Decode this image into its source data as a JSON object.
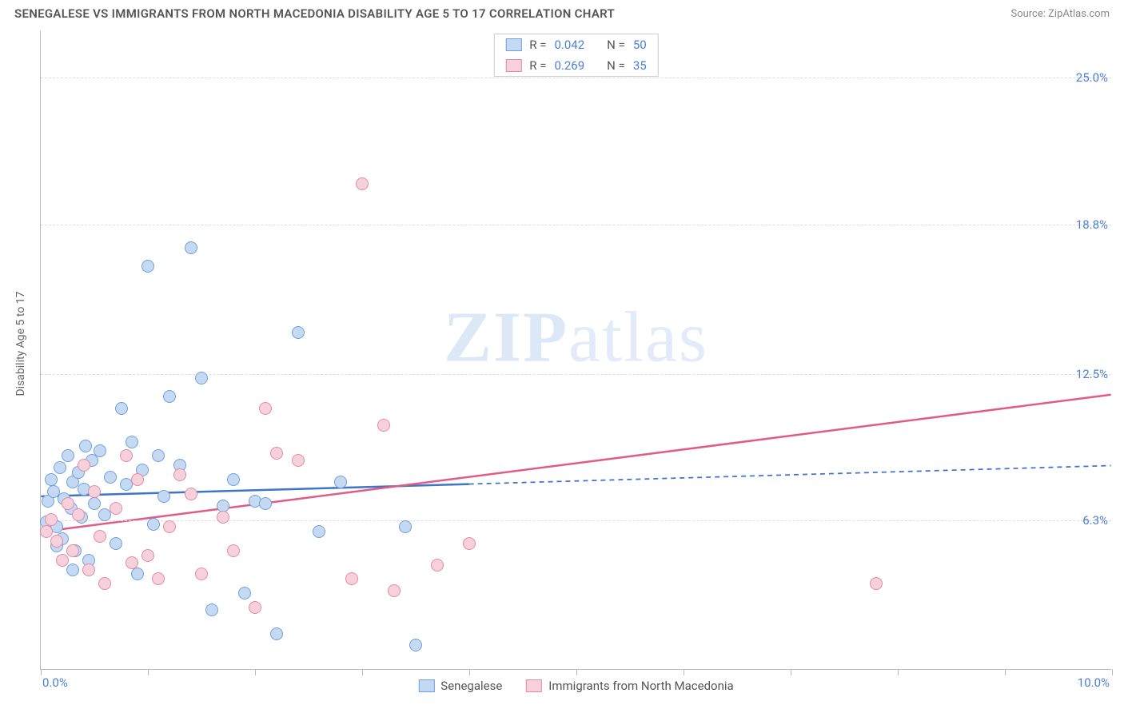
{
  "title": "SENEGALESE VS IMMIGRANTS FROM NORTH MACEDONIA DISABILITY AGE 5 TO 17 CORRELATION CHART",
  "source": "Source: ZipAtlas.com",
  "yaxis_title": "Disability Age 5 to 17",
  "watermark_a": "ZIP",
  "watermark_b": "atlas",
  "chart": {
    "type": "scatter",
    "xlim": [
      0,
      10
    ],
    "ylim": [
      0,
      27
    ],
    "x_min_label": "0.0%",
    "x_max_label": "10.0%",
    "xtick_positions": [
      0,
      1,
      2,
      3,
      4,
      5,
      6,
      7,
      8,
      9,
      10
    ],
    "yticks": [
      {
        "v": 6.3,
        "label": "6.3%"
      },
      {
        "v": 12.5,
        "label": "12.5%"
      },
      {
        "v": 18.8,
        "label": "18.8%"
      },
      {
        "v": 25.0,
        "label": "25.0%"
      }
    ],
    "background_color": "#ffffff",
    "grid_color": "#dddddd",
    "point_radius": 8,
    "point_stroke_width": 1.2,
    "line_width": 2.5,
    "dash_pattern": "6,5"
  },
  "series": [
    {
      "name": "Senegalese",
      "fill": "#c5d9f2",
      "stroke": "#6fa0de",
      "line_color": "#3f74c9",
      "R_label": "R =",
      "R": "0.042",
      "N_label": "N =",
      "N": "50",
      "regression": {
        "x1": 0,
        "y1": 7.3,
        "x2": 10,
        "y2": 8.6,
        "solid_until_x": 4.0
      },
      "points": [
        [
          0.05,
          6.2
        ],
        [
          0.07,
          7.1
        ],
        [
          0.1,
          8.0
        ],
        [
          0.12,
          7.5
        ],
        [
          0.15,
          6.0
        ],
        [
          0.18,
          8.5
        ],
        [
          0.2,
          5.5
        ],
        [
          0.22,
          7.2
        ],
        [
          0.25,
          9.0
        ],
        [
          0.28,
          6.8
        ],
        [
          0.3,
          7.9
        ],
        [
          0.32,
          5.0
        ],
        [
          0.35,
          8.3
        ],
        [
          0.38,
          6.4
        ],
        [
          0.4,
          7.6
        ],
        [
          0.42,
          9.4
        ],
        [
          0.45,
          4.6
        ],
        [
          0.48,
          8.8
        ],
        [
          0.5,
          7.0
        ],
        [
          0.55,
          9.2
        ],
        [
          0.6,
          6.5
        ],
        [
          0.65,
          8.1
        ],
        [
          0.7,
          5.3
        ],
        [
          0.75,
          11.0
        ],
        [
          0.8,
          7.8
        ],
        [
          0.85,
          9.6
        ],
        [
          0.9,
          4.0
        ],
        [
          0.95,
          8.4
        ],
        [
          1.0,
          17.0
        ],
        [
          1.05,
          6.1
        ],
        [
          1.1,
          9.0
        ],
        [
          1.15,
          7.3
        ],
        [
          1.2,
          11.5
        ],
        [
          1.3,
          8.6
        ],
        [
          1.4,
          17.8
        ],
        [
          1.5,
          12.3
        ],
        [
          1.6,
          2.5
        ],
        [
          1.7,
          6.9
        ],
        [
          1.8,
          8.0
        ],
        [
          1.9,
          3.2
        ],
        [
          2.0,
          7.1
        ],
        [
          2.1,
          7.0
        ],
        [
          2.2,
          1.5
        ],
        [
          2.4,
          14.2
        ],
        [
          2.6,
          5.8
        ],
        [
          2.8,
          7.9
        ],
        [
          3.4,
          6.0
        ],
        [
          3.5,
          1.0
        ],
        [
          0.3,
          4.2
        ],
        [
          0.15,
          5.2
        ]
      ]
    },
    {
      "name": "Immigrants from North Macedonia",
      "fill": "#f6d1dc",
      "stroke": "#e38aa5",
      "line_color": "#e05b85",
      "R_label": "R =",
      "R": "0.269",
      "N_label": "N =",
      "N": "35",
      "regression": {
        "x1": 0,
        "y1": 5.8,
        "x2": 10,
        "y2": 11.6,
        "solid_until_x": 10
      },
      "points": [
        [
          0.05,
          5.8
        ],
        [
          0.1,
          6.3
        ],
        [
          0.15,
          5.4
        ],
        [
          0.2,
          4.6
        ],
        [
          0.25,
          7.0
        ],
        [
          0.3,
          5.0
        ],
        [
          0.35,
          6.5
        ],
        [
          0.4,
          8.6
        ],
        [
          0.45,
          4.2
        ],
        [
          0.5,
          7.5
        ],
        [
          0.55,
          5.6
        ],
        [
          0.6,
          3.6
        ],
        [
          0.7,
          6.8
        ],
        [
          0.8,
          9.0
        ],
        [
          0.85,
          4.5
        ],
        [
          0.9,
          8.0
        ],
        [
          1.0,
          4.8
        ],
        [
          1.1,
          3.8
        ],
        [
          1.2,
          6.0
        ],
        [
          1.3,
          8.2
        ],
        [
          1.4,
          7.4
        ],
        [
          1.5,
          4.0
        ],
        [
          1.7,
          6.4
        ],
        [
          1.8,
          5.0
        ],
        [
          2.0,
          2.6
        ],
        [
          2.1,
          11.0
        ],
        [
          2.2,
          9.1
        ],
        [
          2.4,
          8.8
        ],
        [
          2.9,
          3.8
        ],
        [
          3.0,
          20.5
        ],
        [
          3.2,
          10.3
        ],
        [
          3.3,
          3.3
        ],
        [
          3.7,
          4.4
        ],
        [
          4.0,
          5.3
        ],
        [
          7.8,
          3.6
        ]
      ]
    }
  ],
  "legend_bottom": [
    {
      "swatch_fill": "#c5d9f2",
      "swatch_stroke": "#6fa0de",
      "label": "Senegalese"
    },
    {
      "swatch_fill": "#f6d1dc",
      "swatch_stroke": "#e38aa5",
      "label": "Immigrants from North Macedonia"
    }
  ]
}
